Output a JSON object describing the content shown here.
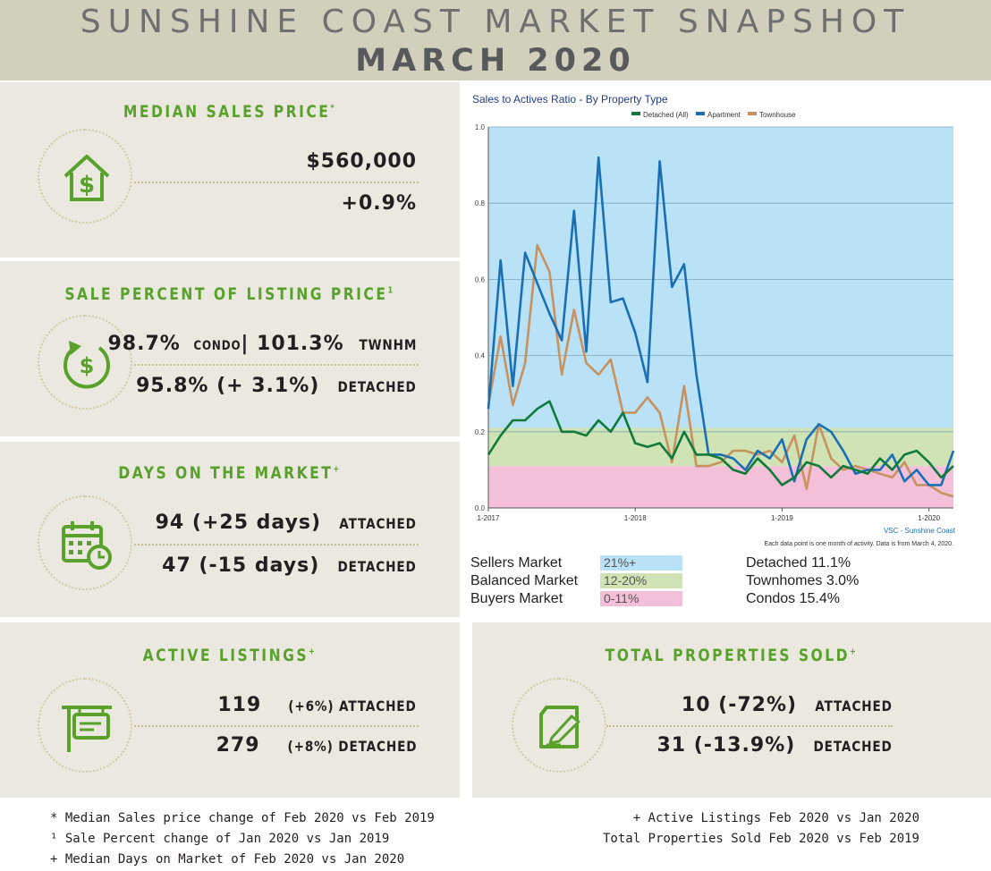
{
  "header": {
    "title": "SUNSHINE COAST MARKET SNAPSHOT",
    "subtitle": "MARCH 2020"
  },
  "median": {
    "title": "MEDIAN SALES PRICE",
    "mark": "*",
    "value": "$560,000",
    "change": "+0.9%",
    "icon": "house-dollar-icon"
  },
  "salepct": {
    "title": "SALE PERCENT OF LISTING PRICE",
    "mark": "1",
    "l1a": "98.7%",
    "l1b": "CONDO",
    "l1c": "| 101.3%",
    "l1d": "TWNHM",
    "l2a": "95.8% (+ 3.1%)",
    "l2b": "DETACHED",
    "icon": "cycle-dollar-icon"
  },
  "dom": {
    "title": "DAYS ON THE MARKET",
    "mark": "+",
    "l1a": "94 (+25 days)",
    "l1b": "ATTACHED",
    "l2a": "47 (-15 days)",
    "l2b": "DETACHED",
    "icon": "calendar-clock-icon"
  },
  "active": {
    "title": "ACTIVE LISTINGS",
    "mark": "+",
    "l1a": "119",
    "l1b": "(+6%) ATTACHED",
    "l2a": "279",
    "l2b": "(+8%) DETACHED",
    "icon": "sign-icon"
  },
  "sold": {
    "title": "TOTAL PROPERTIES SOLD",
    "mark": "+",
    "l1a": "10 (-72%)",
    "l1b": "ATTACHED",
    "l2a": "31 (-13.9%)",
    "l2b": "DETACHED",
    "icon": "contract-pen-icon"
  },
  "market_legend": {
    "sellers": "Sellers Market",
    "sellers_range": "21%+",
    "balanced": "Balanced Market",
    "balanced_range": "12-20%",
    "buyers": "Buyers Market",
    "buyers_range": "0-11%",
    "detached": "Detached 11.1%",
    "townhomes": "Townhomes 3.0%",
    "condos": "Condos 15.4%"
  },
  "footnotes": {
    "f1": "* Median Sales price change of Feb 2020 vs Feb 2019",
    "f2": "¹  Sale Percent change of Jan 2020 vs Jan 2019",
    "f3": "+ Median Days on Market of Feb 2020 vs Jan 2020",
    "f4": "+ Active Listings Feb 2020 vs Jan 2020",
    "f5": "Total Properties Sold Feb 2020 vs Feb 2019"
  },
  "colors": {
    "accent": "#58a22c",
    "panel": "#ebe8df",
    "header": "#d3cfbd",
    "sellers": "#b9e2f7",
    "balanced": "#cfe3b4",
    "buyers": "#f3bfd9",
    "detached": "#0f7a3a",
    "apartment": "#1a6fb3",
    "townhouse": "#c7925f",
    "purple": "#8a5ab0"
  },
  "chart_data": {
    "type": "line",
    "title": "Sales to Actives Ratio - By Property Type",
    "source": "VSC - Sunshine Coast",
    "note": "Each data point is one month of activity. Data is from March 4, 2020.",
    "ylim": [
      0,
      1.0
    ],
    "yticks": [
      "0.0",
      "0.2",
      "0.4",
      "0.6",
      "0.8",
      "1.0"
    ],
    "xticks": [
      "1-2017",
      "1-2018",
      "1-2019",
      "1-2020"
    ],
    "bands": [
      {
        "name": "Buyers Market",
        "from": 0,
        "to": 0.11
      },
      {
        "name": "Balanced Market",
        "from": 0.11,
        "to": 0.21
      },
      {
        "name": "Sellers Market",
        "from": 0.21,
        "to": 1.0
      }
    ],
    "x_start": "2017-01",
    "series": [
      {
        "name": "Detached (All)",
        "values": [
          0.14,
          0.19,
          0.23,
          0.23,
          0.26,
          0.28,
          0.2,
          0.2,
          0.19,
          0.23,
          0.2,
          0.25,
          0.17,
          0.16,
          0.17,
          0.13,
          0.2,
          0.14,
          0.14,
          0.13,
          0.1,
          0.09,
          0.13,
          0.1,
          0.06,
          0.08,
          0.12,
          0.11,
          0.08,
          0.11,
          0.1,
          0.09,
          0.13,
          0.1,
          0.14,
          0.15,
          0.12,
          0.08,
          0.11
        ]
      },
      {
        "name": "Apartment",
        "values": [
          0.26,
          0.65,
          0.32,
          0.67,
          0.59,
          0.51,
          0.44,
          0.78,
          0.41,
          0.92,
          0.54,
          0.55,
          0.46,
          0.33,
          0.91,
          0.58,
          0.64,
          0.35,
          0.14,
          0.14,
          0.13,
          0.1,
          0.15,
          0.13,
          0.18,
          0.07,
          0.18,
          0.22,
          0.2,
          0.15,
          0.09,
          0.1,
          0.1,
          0.14,
          0.07,
          0.1,
          0.06,
          0.06,
          0.15
        ]
      },
      {
        "name": "Townhouse",
        "values": [
          0.27,
          0.45,
          0.27,
          0.38,
          0.69,
          0.62,
          0.35,
          0.52,
          0.38,
          0.35,
          0.39,
          0.25,
          0.25,
          0.29,
          0.25,
          0.12,
          0.32,
          0.11,
          0.11,
          0.12,
          0.15,
          0.15,
          0.14,
          0.15,
          0.12,
          0.19,
          0.05,
          0.22,
          0.13,
          0.1,
          0.11,
          0.1,
          0.09,
          0.08,
          0.12,
          0.06,
          0.06,
          0.04,
          0.03
        ]
      }
    ]
  }
}
